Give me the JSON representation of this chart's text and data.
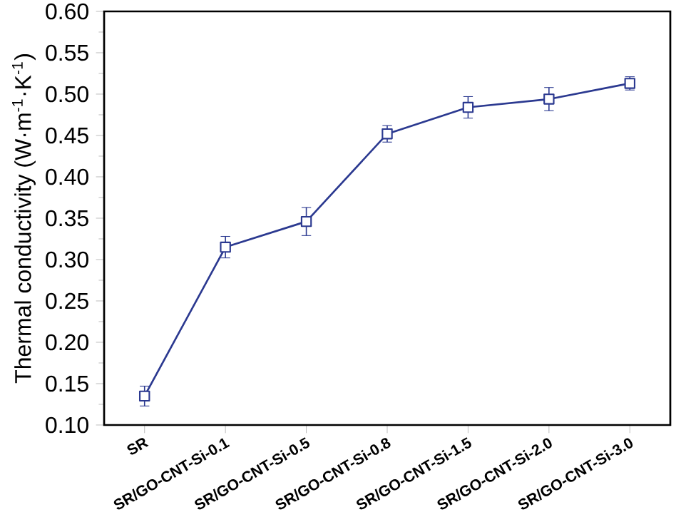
{
  "chart_data": {
    "type": "line",
    "ylabel": "Thermal conductivity (W·m$^{-1}$·K$^{-1}$)",
    "categories": [
      "SR",
      "SR/GO-CNT-Si-0.1",
      "SR/GO-CNT-Si-0.5",
      "SR/GO-CNT-Si-0.8",
      "SR/GO-CNT-Si-1.5",
      "SR/GO-CNT-Si-2.0",
      "SR/GO-CNT-Si-3.0"
    ],
    "values": [
      0.135,
      0.315,
      0.346,
      0.452,
      0.484,
      0.494,
      0.513
    ],
    "errors": [
      0.012,
      0.013,
      0.017,
      0.01,
      0.013,
      0.014,
      0.008
    ],
    "color": "#2b3990",
    "marker": "square",
    "line_style": "solid",
    "ylim": [
      0.1,
      0.6
    ],
    "yticks": [
      {
        "value": 0.1,
        "label": "0.10"
      },
      0.15,
      {
        "value": 0.2,
        "label": "0.20"
      },
      0.25,
      {
        "value": 0.3,
        "label": "0.30"
      },
      0.35,
      {
        "value": 0.4,
        "label": "0.40"
      },
      0.45,
      {
        "value": 0.5,
        "label": "0.50"
      },
      0.55,
      {
        "value": 0.6,
        "label": "0.60"
      }
    ]
  }
}
